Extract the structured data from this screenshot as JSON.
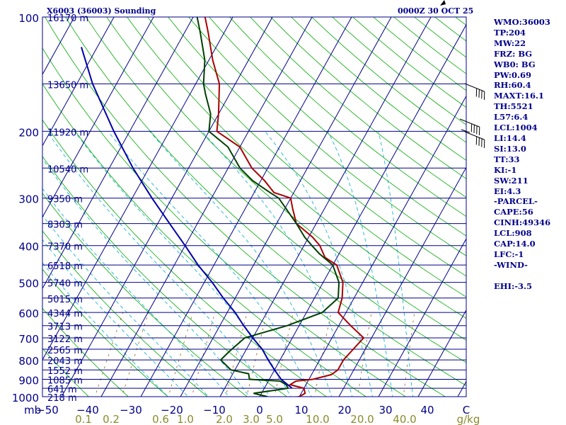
{
  "chart_data": {
    "type": "skew-t",
    "title_left": "X6003 (36003) Sounding",
    "title_right": "0000Z 30 OCT 25",
    "pressure_axis_label": "mb",
    "temperature_axis_unit": "C",
    "mixing_ratio_unit": "g/kg",
    "pressure_range": [
      100,
      1000
    ],
    "temperature_range": [
      -50,
      50
    ],
    "pressure_ticks": [
      100,
      200,
      300,
      400,
      500,
      600,
      700,
      800,
      900,
      1000
    ],
    "temperature_ticks": [
      "−50",
      "−40",
      "−30",
      "−20",
      "−10",
      "0",
      "10",
      "20",
      "30",
      "40",
      "C"
    ],
    "mixing_ratio_ticks": [
      "0.1",
      "0.2",
      "0.6",
      "1.0",
      "2.0",
      "3.0",
      "5.0",
      "10.0",
      "20.0",
      "40.0",
      "g/kg"
    ],
    "heights": [
      {
        "p": 100,
        "label": "16170 m"
      },
      {
        "p": 150,
        "label": "13650 m"
      },
      {
        "p": 200,
        "label": "11920 m"
      },
      {
        "p": 250,
        "label": "10540 m"
      },
      {
        "p": 300,
        "label": "9350 m"
      },
      {
        "p": 350,
        "label": "8303 m"
      },
      {
        "p": 400,
        "label": "7370 m"
      },
      {
        "p": 450,
        "label": "6518 m"
      },
      {
        "p": 500,
        "label": "5740 m"
      },
      {
        "p": 550,
        "label": "5015 m"
      },
      {
        "p": 600,
        "label": "4344 m"
      },
      {
        "p": 650,
        "label": "3713 m"
      },
      {
        "p": 700,
        "label": "3122 m"
      },
      {
        "p": 750,
        "label": "2565 m"
      },
      {
        "p": 800,
        "label": "2043 m"
      },
      {
        "p": 850,
        "label": "1552 m"
      },
      {
        "p": 900,
        "label": "1085 m"
      },
      {
        "p": 950,
        "label": "641 m"
      },
      {
        "p": 1000,
        "label": "218 m"
      }
    ],
    "series": [
      {
        "name": "temperature",
        "color": "#aa0000",
        "points": [
          [
            1012,
            6
          ],
          [
            1000,
            10
          ],
          [
            980,
            11
          ],
          [
            950,
            10
          ],
          [
            930,
            6
          ],
          [
            910,
            7
          ],
          [
            900,
            11
          ],
          [
            875,
            15
          ],
          [
            850,
            16
          ],
          [
            800,
            16
          ],
          [
            700,
            18
          ],
          [
            650,
            13
          ],
          [
            600,
            8
          ],
          [
            550,
            7
          ],
          [
            500,
            5
          ],
          [
            450,
            1
          ],
          [
            430,
            -3
          ],
          [
            400,
            -6
          ],
          [
            380,
            -9
          ],
          [
            350,
            -15
          ],
          [
            320,
            -18
          ],
          [
            300,
            -20
          ],
          [
            290,
            -25
          ],
          [
            270,
            -29
          ],
          [
            250,
            -34
          ],
          [
            220,
            -40
          ],
          [
            200,
            -48
          ],
          [
            180,
            -50
          ],
          [
            150,
            -54
          ],
          [
            130,
            -59
          ],
          [
            110,
            -64
          ],
          [
            100,
            -67
          ]
        ]
      },
      {
        "name": "dewpoint",
        "color": "#004000",
        "points": [
          [
            1012,
            -2
          ],
          [
            1000,
            2
          ],
          [
            980,
            -2
          ],
          [
            950,
            6
          ],
          [
            930,
            5
          ],
          [
            910,
            3
          ],
          [
            900,
            -5
          ],
          [
            870,
            -6
          ],
          [
            850,
            -11
          ],
          [
            800,
            -15
          ],
          [
            760,
            -14
          ],
          [
            700,
            -12
          ],
          [
            650,
            -3
          ],
          [
            600,
            4
          ],
          [
            550,
            6
          ],
          [
            500,
            4
          ],
          [
            450,
            0
          ],
          [
            420,
            -5
          ],
          [
            400,
            -8
          ],
          [
            380,
            -11
          ],
          [
            350,
            -15
          ],
          [
            300,
            -23
          ],
          [
            290,
            -26
          ],
          [
            270,
            -32
          ],
          [
            250,
            -37
          ],
          [
            220,
            -43
          ],
          [
            200,
            -50
          ],
          [
            180,
            -52
          ],
          [
            160,
            -56
          ],
          [
            150,
            -58
          ],
          [
            130,
            -61
          ],
          [
            110,
            -66
          ],
          [
            100,
            -69
          ]
        ]
      },
      {
        "name": "parcel",
        "color": "#0000aa",
        "points": [
          [
            950,
            7
          ],
          [
            900,
            3
          ],
          [
            850,
            0
          ],
          [
            800,
            -3
          ],
          [
            750,
            -6
          ],
          [
            700,
            -10
          ],
          [
            650,
            -14
          ],
          [
            600,
            -18
          ],
          [
            550,
            -23
          ],
          [
            500,
            -28
          ],
          [
            450,
            -34
          ],
          [
            400,
            -40
          ],
          [
            350,
            -47
          ],
          [
            300,
            -55
          ],
          [
            250,
            -64
          ],
          [
            200,
            -74
          ],
          [
            150,
            -86
          ],
          [
            120,
            -94
          ]
        ]
      }
    ]
  },
  "indices": [
    "WMO:36003",
    "TP:204",
    "MW:22",
    "FRZ: BG",
    "WB0: BG",
    "PW:0.69",
    "RH:60.4",
    "MAXT:16.1",
    "TH:5521",
    "L57:6.4",
    "LCL:1004",
    "LI:14.4",
    "SI:13.0",
    "TT:33",
    "KI:-1",
    "SW:211",
    "EI:4.3",
    "-PARCEL-",
    "CAPE:56",
    "CINH:49346",
    "LCL:908",
    "CAP:14.0",
    "LFC:-1",
    "-WIND-",
    "",
    "EHI:-3.5"
  ],
  "colors": {
    "isobar": "#00008b",
    "isotherm": "#00008b",
    "dry_adiabat": "#00aa00",
    "moist_adiabat": "#00aacc",
    "mixing_ratio": "#8b6914",
    "axis_text": "#00008b",
    "mixing_text": "#8b8b2b"
  }
}
